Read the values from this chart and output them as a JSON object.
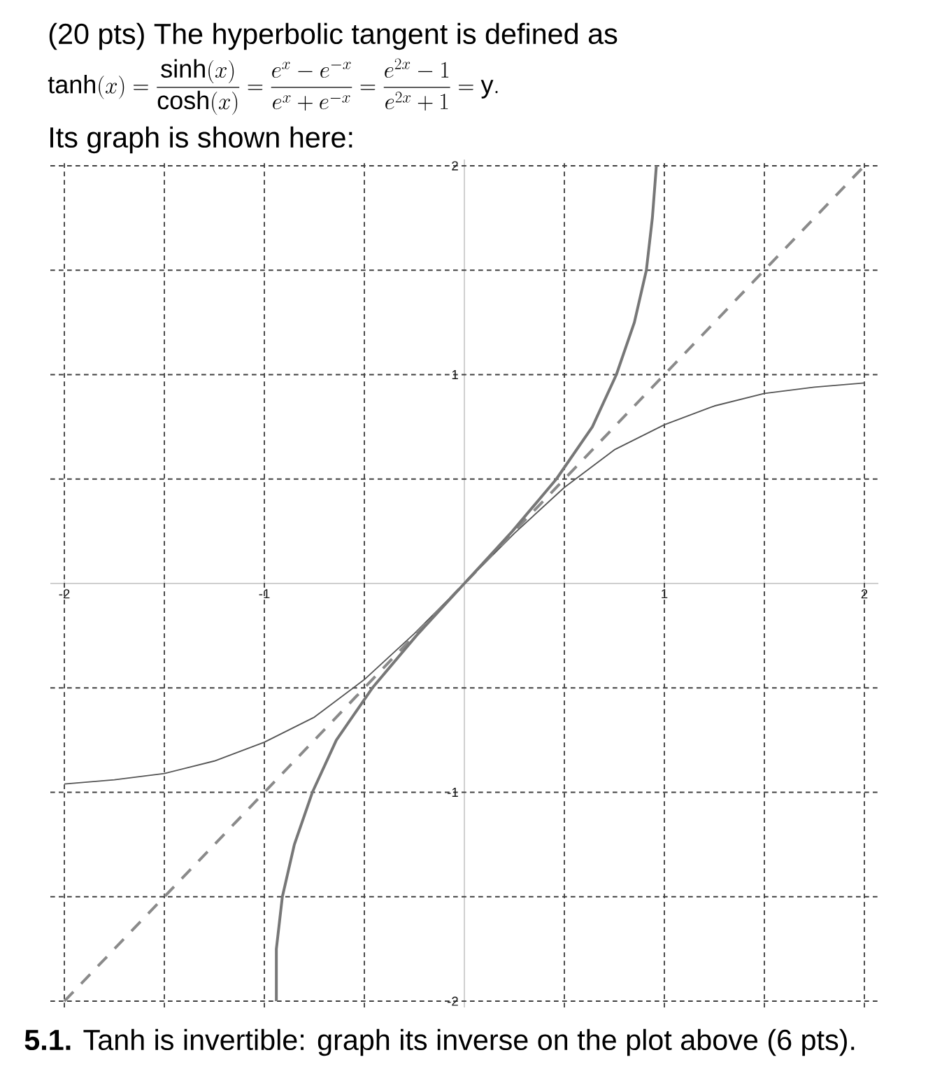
{
  "chart_data": {
    "type": "line",
    "title": "(20 pts) The hyperbolic tangent is defined as",
    "subtitle": "\\tanh(x)=\\frac{\\sinh(x)}{\\cosh(x)}=\\frac{e^{x}-e^{-x}}{e^{x}+e^{-x}}=\\frac{e^{2x}-1}{e^{2x}+1}=\\mathrm{y}.",
    "annotations": [
      "Its graph is shown here:",
      "**5.1.** Tanh is invertible: graph its inverse on the plot above (6 pts)."
    ],
    "x": [
      -2,
      -1.75,
      -1.5,
      -1.25,
      -1,
      -0.75,
      -0.5,
      -0.25,
      0,
      0.25,
      0.5,
      0.75,
      1,
      1.25,
      1.5,
      1.75,
      2
    ],
    "series": [
      {
        "color": "#555555",
        "values": [
          -0.96,
          -0.94,
          -0.91,
          -0.85,
          -0.76,
          -0.64,
          -0.46,
          -0.24,
          0,
          0.24,
          0.46,
          0.64,
          0.76,
          0.85,
          0.91,
          0.94,
          0.96
        ]
      },
      {
        "color": "#8a8a8a",
        "line_style": "dashed",
        "x": [
          -2,
          2
        ],
        "values": [
          -2,
          2
        ]
      },
      {
        "color": "#777777",
        "x": [
          -0.94,
          -0.94,
          -0.91,
          -0.85,
          -0.76,
          -0.64,
          -0.46,
          -0.24,
          0,
          0.24,
          0.46,
          0.64,
          0.76,
          0.85,
          0.91,
          0.94,
          0.96
        ],
        "values": [
          -2,
          -1.75,
          -1.5,
          -1.25,
          -1,
          -0.75,
          -0.5,
          -0.25,
          0,
          0.25,
          0.5,
          0.75,
          1,
          1.25,
          1.5,
          1.75,
          2
        ]
      }
    ],
    "xlim": [
      -2.07,
      2.07
    ],
    "ylim": [
      -2.03,
      2.03
    ],
    "xticks": [
      -2,
      {
        "value": -1.5,
        "label": null
      },
      -1,
      {
        "value": -0.5,
        "label": null
      },
      {
        "value": 0,
        "label": null
      },
      {
        "value": 0.5,
        "label": null
      },
      1,
      {
        "value": 1.5,
        "label": null
      },
      2
    ],
    "yticks": [
      -2,
      {
        "value": -1.5,
        "label": null
      },
      -1,
      {
        "value": -0.5,
        "label": null
      },
      {
        "value": 0,
        "label": null
      },
      {
        "value": 0.5,
        "label": null
      },
      1,
      {
        "value": 1.5,
        "label": null
      },
      2
    ],
    "grid": true,
    "marker": "none",
    "line_style": "solid"
  }
}
